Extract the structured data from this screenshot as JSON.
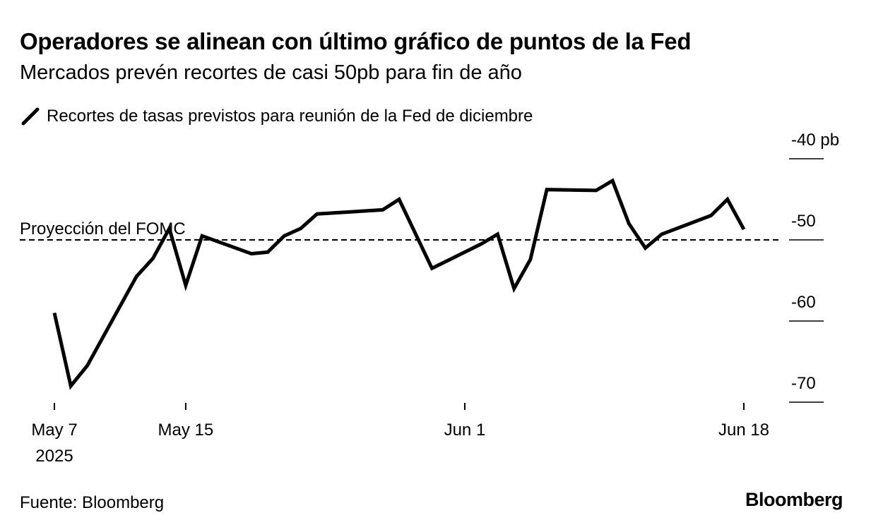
{
  "title": "Operadores se alinean con último gráfico de puntos de la Fed",
  "subtitle": "Mercados prevén recortes de casi 50pb para fin de año",
  "source": "Fuente: Bloomberg",
  "brand": "Bloomberg",
  "colors": {
    "line": "#000000",
    "background": "#ffffff",
    "axis": "#000000"
  },
  "chart_data": {
    "type": "line",
    "series": [
      {
        "name": "Recortes de tasas previstos para reunión de la Fed de diciembre",
        "points": [
          {
            "x": "2025-05-07",
            "y": -59.0
          },
          {
            "x": "2025-05-08",
            "y": -68.0
          },
          {
            "x": "2025-05-09",
            "y": -65.5
          },
          {
            "x": "2025-05-12",
            "y": -54.5
          },
          {
            "x": "2025-05-13",
            "y": -52.3
          },
          {
            "x": "2025-05-14",
            "y": -48.6
          },
          {
            "x": "2025-05-15",
            "y": -55.6
          },
          {
            "x": "2025-05-16",
            "y": -49.5
          },
          {
            "x": "2025-05-19",
            "y": -51.7
          },
          {
            "x": "2025-05-20",
            "y": -51.5
          },
          {
            "x": "2025-05-21",
            "y": -49.5
          },
          {
            "x": "2025-05-22",
            "y": -48.6
          },
          {
            "x": "2025-05-23",
            "y": -46.8
          },
          {
            "x": "2025-05-27",
            "y": -46.3
          },
          {
            "x": "2025-05-28",
            "y": -45.0
          },
          {
            "x": "2025-05-30",
            "y": -53.5
          },
          {
            "x": "2025-06-02",
            "y": -50.5
          },
          {
            "x": "2025-06-03",
            "y": -49.3
          },
          {
            "x": "2025-06-04",
            "y": -56.0
          },
          {
            "x": "2025-06-05",
            "y": -52.4
          },
          {
            "x": "2025-06-06",
            "y": -43.8
          },
          {
            "x": "2025-06-09",
            "y": -43.9
          },
          {
            "x": "2025-06-10",
            "y": -42.7
          },
          {
            "x": "2025-06-11",
            "y": -48.0
          },
          {
            "x": "2025-06-12",
            "y": -51.0
          },
          {
            "x": "2025-06-13",
            "y": -49.3
          },
          {
            "x": "2025-06-16",
            "y": -47.0
          },
          {
            "x": "2025-06-17",
            "y": -45.0
          },
          {
            "x": "2025-06-18",
            "y": -48.7
          }
        ]
      }
    ],
    "reference_line": {
      "label": "Proyección del FOMC",
      "y": -50,
      "style": "dashed"
    },
    "x_ticks": [
      {
        "x": "2025-05-07",
        "label": "May 7",
        "sublabel": "2025"
      },
      {
        "x": "2025-05-15",
        "label": "May 15",
        "sublabel": ""
      },
      {
        "x": "2025-06-01",
        "label": "Jun 1",
        "sublabel": ""
      },
      {
        "x": "2025-06-18",
        "label": "Jun 18",
        "sublabel": ""
      }
    ],
    "y_ticks": [
      {
        "value": -40,
        "label": "-40 pb"
      },
      {
        "value": -50,
        "label": "-50"
      },
      {
        "value": -60,
        "label": "-60"
      },
      {
        "value": -70,
        "label": "-70"
      }
    ],
    "ylim": [
      -70,
      -40
    ],
    "xlim": [
      "2025-05-07",
      "2025-06-18"
    ],
    "y_axis_position": "right",
    "legend_position": "top-left",
    "grid": false
  }
}
